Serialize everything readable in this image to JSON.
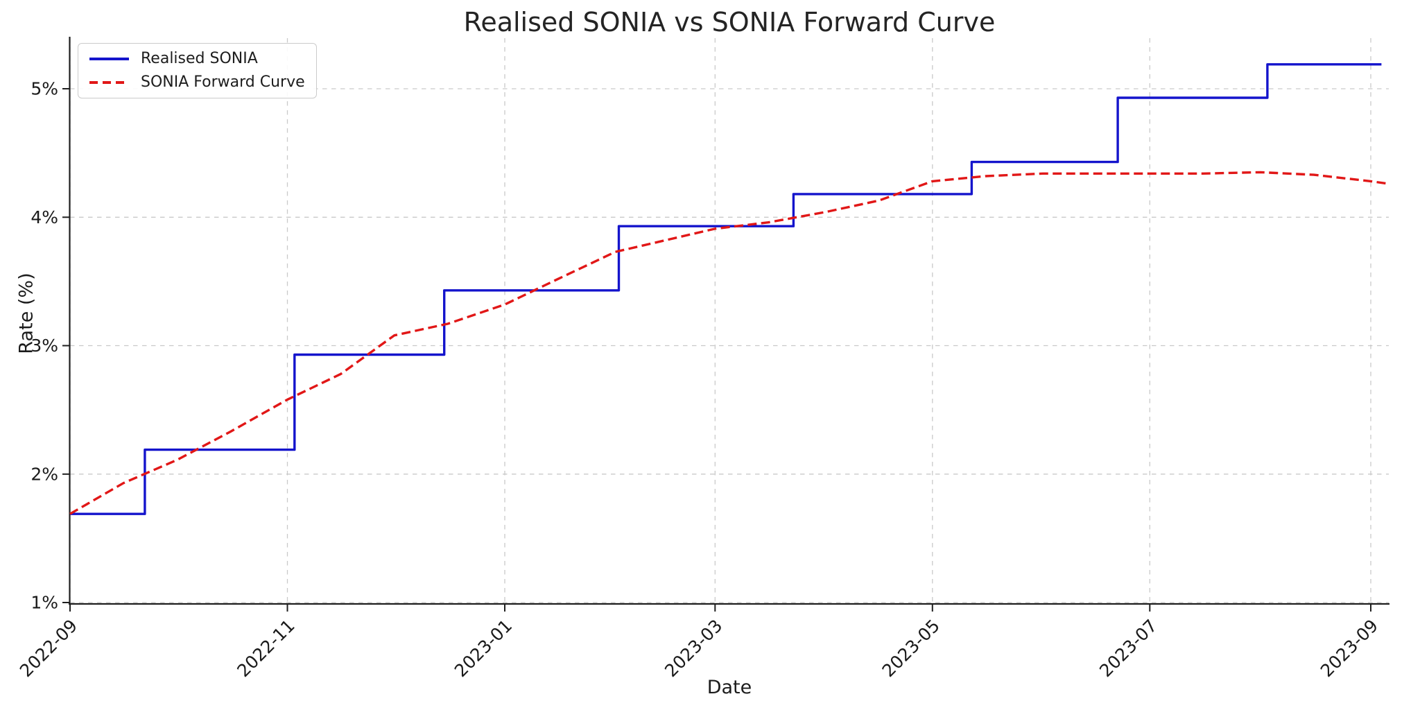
{
  "title": "Realised SONIA vs SONIA Forward Curve",
  "colors": {
    "realised": "#1414cc",
    "forward": "#e11717",
    "grid": "#c9c9c9",
    "spine": "#1f1f1f",
    "text": "#1c1c1c"
  },
  "chart_data": {
    "type": "line",
    "title": "Realised SONIA vs SONIA Forward Curve",
    "xlabel": "Date",
    "ylabel": "Rate (%)",
    "x_range": [
      "2022-09-01",
      "2023-09-06"
    ],
    "ylim": [
      1.0,
      5.41
    ],
    "grid": "dashed-both-axes",
    "legend_position": "upper-left",
    "x_ticks": [
      {
        "label": "2022-09",
        "date": "2022-09-01"
      },
      {
        "label": "2022-11",
        "date": "2022-11-01"
      },
      {
        "label": "2023-01",
        "date": "2023-01-01"
      },
      {
        "label": "2023-03",
        "date": "2023-03-01"
      },
      {
        "label": "2023-05",
        "date": "2023-05-01"
      },
      {
        "label": "2023-07",
        "date": "2023-07-01"
      },
      {
        "label": "2023-09",
        "date": "2023-09-01"
      }
    ],
    "y_ticks": [
      {
        "label": "1%",
        "value": 1
      },
      {
        "label": "2%",
        "value": 2
      },
      {
        "label": "3%",
        "value": 3
      },
      {
        "label": "4%",
        "value": 4
      },
      {
        "label": "5%",
        "value": 5
      }
    ],
    "series": [
      {
        "name": "Realised SONIA",
        "color": "#1414cc",
        "line_style": "solid",
        "render": "step",
        "end_date": "2023-09-04",
        "steps": [
          {
            "date": "2022-09-01",
            "rate": 1.69
          },
          {
            "date": "2022-09-22",
            "rate": 2.19
          },
          {
            "date": "2022-11-03",
            "rate": 2.93
          },
          {
            "date": "2022-12-15",
            "rate": 3.43
          },
          {
            "date": "2023-02-02",
            "rate": 3.93
          },
          {
            "date": "2023-03-23",
            "rate": 4.18
          },
          {
            "date": "2023-05-12",
            "rate": 4.43
          },
          {
            "date": "2023-06-22",
            "rate": 4.93
          },
          {
            "date": "2023-08-03",
            "rate": 5.19
          }
        ]
      },
      {
        "name": "SONIA Forward Curve",
        "color": "#e11717",
        "line_style": "dashed",
        "render": "line",
        "points": [
          {
            "date": "2022-09-01",
            "rate": 1.69
          },
          {
            "date": "2022-09-16",
            "rate": 1.93
          },
          {
            "date": "2022-10-01",
            "rate": 2.11
          },
          {
            "date": "2022-10-16",
            "rate": 2.33
          },
          {
            "date": "2022-11-01",
            "rate": 2.58
          },
          {
            "date": "2022-11-16",
            "rate": 2.78
          },
          {
            "date": "2022-12-01",
            "rate": 3.08
          },
          {
            "date": "2022-12-16",
            "rate": 3.17
          },
          {
            "date": "2023-01-01",
            "rate": 3.32
          },
          {
            "date": "2023-01-16",
            "rate": 3.52
          },
          {
            "date": "2023-02-01",
            "rate": 3.73
          },
          {
            "date": "2023-02-15",
            "rate": 3.82
          },
          {
            "date": "2023-03-01",
            "rate": 3.91
          },
          {
            "date": "2023-03-16",
            "rate": 3.96
          },
          {
            "date": "2023-04-01",
            "rate": 4.04
          },
          {
            "date": "2023-04-16",
            "rate": 4.13
          },
          {
            "date": "2023-05-01",
            "rate": 4.28
          },
          {
            "date": "2023-05-16",
            "rate": 4.32
          },
          {
            "date": "2023-06-01",
            "rate": 4.34
          },
          {
            "date": "2023-06-16",
            "rate": 4.34
          },
          {
            "date": "2023-07-01",
            "rate": 4.34
          },
          {
            "date": "2023-07-16",
            "rate": 4.34
          },
          {
            "date": "2023-08-01",
            "rate": 4.35
          },
          {
            "date": "2023-08-16",
            "rate": 4.33
          },
          {
            "date": "2023-09-01",
            "rate": 4.28
          },
          {
            "date": "2023-09-06",
            "rate": 4.26
          }
        ]
      }
    ]
  }
}
